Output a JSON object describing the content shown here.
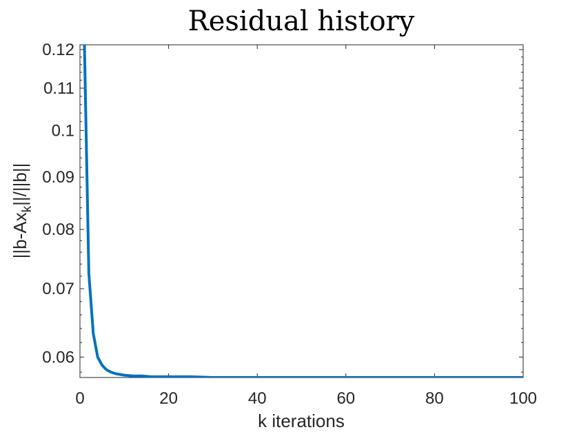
{
  "chart_data": {
    "type": "line",
    "title": "Residual history",
    "xlabel": "k iterations",
    "ylabel": "||b-Ax_k||/||b||",
    "ylabel_parts": {
      "main": "||b-Ax",
      "sub": "k",
      "rest": "||/||b||"
    },
    "xlim": [
      0,
      100
    ],
    "ylim": [
      0.0573,
      0.1213
    ],
    "yscale": "log",
    "xticks": [
      0,
      20,
      40,
      60,
      80,
      100
    ],
    "xtick_labels": [
      "0",
      "20",
      "40",
      "60",
      "80",
      "100"
    ],
    "yticks": [
      0.06,
      0.07,
      0.08,
      0.09,
      0.1,
      0.11,
      0.12
    ],
    "ytick_labels": [
      "0.06",
      "0.07",
      "0.08",
      "0.09",
      "0.1",
      "0.11",
      "0.12"
    ],
    "grid": false,
    "box": true,
    "colors": {
      "series": "#0072BD",
      "axes": "#262626"
    },
    "series": [
      {
        "x": [
          1,
          2,
          3,
          4,
          5,
          6,
          7,
          8,
          9,
          10,
          12,
          14,
          16,
          18,
          20,
          25,
          30,
          40,
          50,
          60,
          70,
          80,
          90,
          100
        ],
        "y": [
          0.122,
          0.0725,
          0.0633,
          0.06,
          0.0589,
          0.0583,
          0.058,
          0.0578,
          0.0577,
          0.0576,
          0.0575,
          0.0575,
          0.0574,
          0.0574,
          0.0574,
          0.0574,
          0.0573,
          0.0573,
          0.0573,
          0.0573,
          0.0573,
          0.0573,
          0.0573,
          0.0573
        ]
      }
    ]
  }
}
